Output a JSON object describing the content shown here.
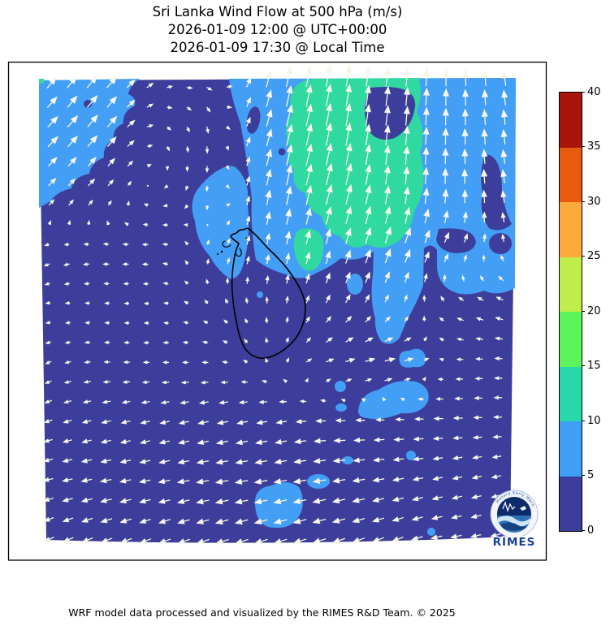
{
  "title": {
    "line1": "Sri Lanka Wind Flow at 500 hPa (m/s)",
    "line2": "2026-01-09 12:00 @ UTC+00:00",
    "line3": "2026-01-09 17:30 @ Local Time"
  },
  "footer": {
    "credit": "WRF model data processed and visualized by the RIMES R&D Team. © 2025"
  },
  "logo": {
    "name": "RIMES",
    "ring_text": "Hazard Early Warning"
  },
  "colors": {
    "band0": "#3d3e9b",
    "band1": "#439ef5",
    "band2": "#2fd9a0",
    "arrow": "#f5f6e8",
    "coastline": "#000000",
    "frame": "#000000",
    "background": "#ffffff",
    "logo_navy": "#0d2b6b",
    "logo_text": "#1a3e9c"
  },
  "chart_data": {
    "type": "quiver_filled_contour_map",
    "title": "Sri Lanka Wind Flow at 500 hPa (m/s)",
    "valid_time_utc": "2026-01-09 12:00 @ UTC+00:00",
    "valid_time_local": "2026-01-09 17:30 @ Local Time",
    "variable": "wind speed and direction at 500 hPa",
    "units": "m/s",
    "pressure_level_hPa": 500,
    "colorbar": {
      "orientation": "vertical",
      "range": [
        0,
        40
      ],
      "ticks": [
        0,
        5,
        10,
        15,
        20,
        25,
        30,
        35,
        40
      ],
      "band_colors_low_to_high": [
        "#3d3e9b",
        "#3f9ff5",
        "#28d8ab",
        "#5bf55b",
        "#bfee4a",
        "#fcaa3c",
        "#e65b0f",
        "#a9150b"
      ]
    },
    "speed_bands_visible_on_map": [
      {
        "range_ms": "0-5",
        "color": "#3d3e9b"
      },
      {
        "range_ms": "5-10",
        "color": "#439ef5"
      },
      {
        "range_ms": "10-15",
        "color": "#2fd9a0"
      }
    ],
    "map_overlay": "Sri Lanka coastline",
    "wind_grid": {
      "comment": "coarse 9x9 sample of the plotted vector field, row-major from north-west corner; u positive east, v positive north, m/s",
      "cols": 9,
      "rows": 9,
      "uv": [
        [
          [
            4,
            5
          ],
          [
            5,
            6
          ],
          [
            2,
            1
          ],
          [
            2,
            -1
          ],
          [
            2,
            10
          ],
          [
            2,
            11
          ],
          [
            1,
            9
          ],
          [
            0,
            8
          ],
          [
            -1,
            7
          ]
        ],
        [
          [
            5,
            5
          ],
          [
            5,
            6
          ],
          [
            1,
            -1
          ],
          [
            0,
            -3
          ],
          [
            3,
            11
          ],
          [
            2,
            12
          ],
          [
            1,
            10
          ],
          [
            0,
            8
          ],
          [
            -1,
            7
          ]
        ],
        [
          [
            3,
            3
          ],
          [
            2,
            2
          ],
          [
            -1,
            0
          ],
          [
            0,
            -2
          ],
          [
            2,
            10
          ],
          [
            3,
            11
          ],
          [
            1,
            9
          ],
          [
            0,
            7
          ],
          [
            -1,
            6
          ]
        ],
        [
          [
            -2,
            -1
          ],
          [
            -2,
            0
          ],
          [
            -2,
            0
          ],
          [
            1,
            2
          ],
          [
            1,
            5
          ],
          [
            2,
            7
          ],
          [
            3,
            8
          ],
          [
            2,
            3
          ],
          [
            -1,
            2
          ]
        ],
        [
          [
            -1,
            0
          ],
          [
            -1,
            0
          ],
          [
            -1,
            0
          ],
          [
            -1,
            1
          ],
          [
            0,
            2
          ],
          [
            2,
            3
          ],
          [
            1,
            2
          ],
          [
            -2,
            1
          ],
          [
            -3,
            1
          ]
        ],
        [
          [
            -2,
            -1
          ],
          [
            -2,
            0
          ],
          [
            -2,
            0
          ],
          [
            -2,
            0
          ],
          [
            0,
            1
          ],
          [
            4,
            1
          ],
          [
            5,
            1
          ],
          [
            -2,
            0
          ],
          [
            -3,
            0
          ]
        ],
        [
          [
            -3,
            -1
          ],
          [
            -4,
            -1
          ],
          [
            -4,
            -1
          ],
          [
            -5,
            -1
          ],
          [
            -5,
            -1
          ],
          [
            -5,
            0
          ],
          [
            -4,
            0
          ],
          [
            -4,
            0
          ],
          [
            -3,
            0
          ]
        ],
        [
          [
            -4,
            -1
          ],
          [
            -5,
            -1
          ],
          [
            -5,
            -1
          ],
          [
            -6,
            -1
          ],
          [
            -6,
            -1
          ],
          [
            -6,
            -1
          ],
          [
            -5,
            -1
          ],
          [
            -4,
            -1
          ],
          [
            -4,
            -1
          ]
        ],
        [
          [
            -4,
            -2
          ],
          [
            -5,
            -2
          ],
          [
            -5,
            -2
          ],
          [
            -6,
            -2
          ],
          [
            -6,
            -2
          ],
          [
            -6,
            -2
          ],
          [
            -5,
            -2
          ],
          [
            -5,
            -1
          ],
          [
            -4,
            -1
          ]
        ]
      ]
    }
  }
}
